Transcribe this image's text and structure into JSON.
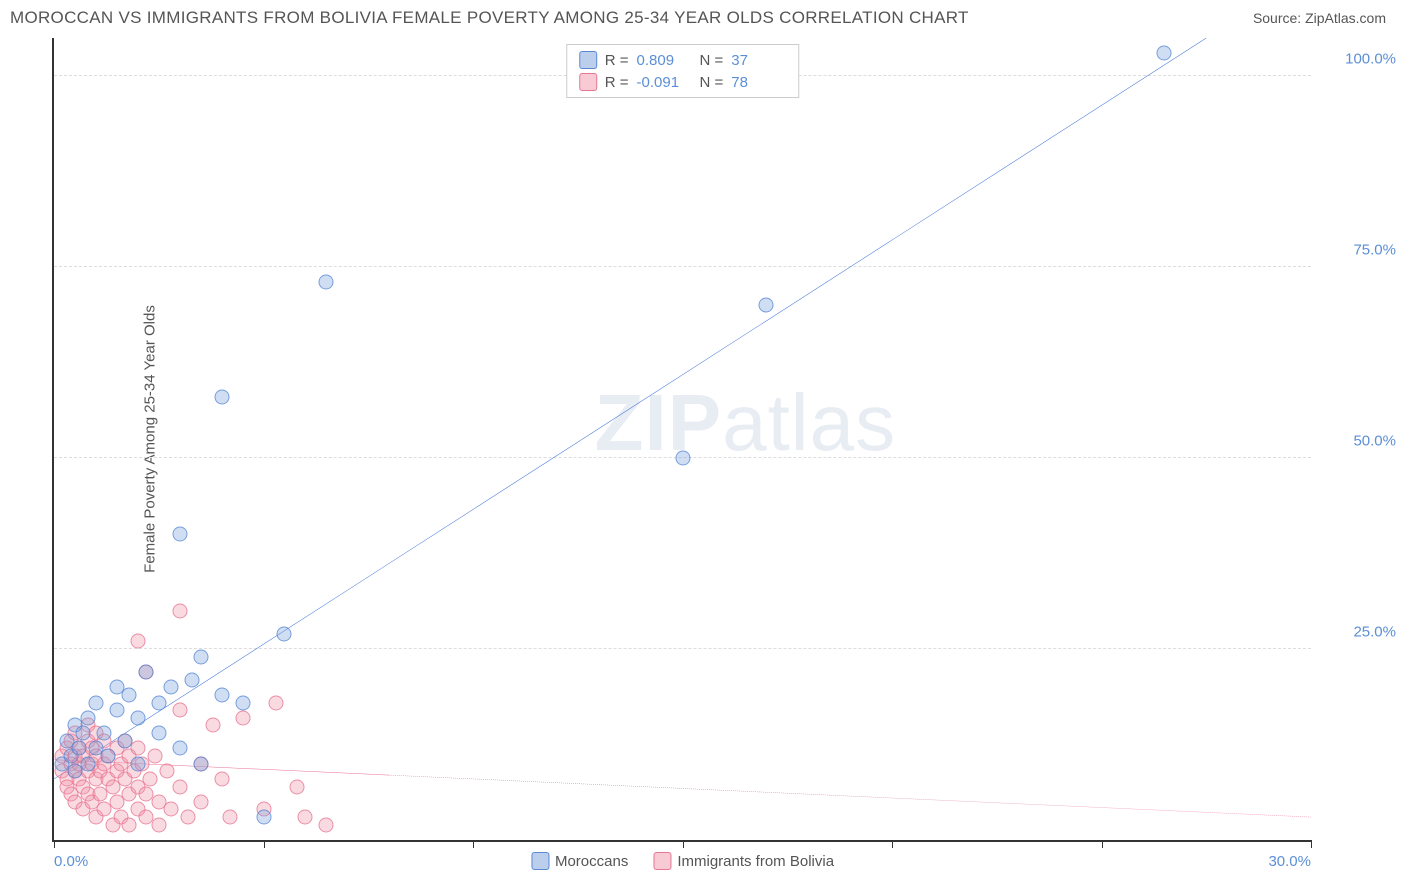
{
  "header": {
    "title": "MOROCCAN VS IMMIGRANTS FROM BOLIVIA FEMALE POVERTY AMONG 25-34 YEAR OLDS CORRELATION CHART",
    "source": "Source: ZipAtlas.com"
  },
  "watermark": {
    "part1": "ZIP",
    "part2": "atlas"
  },
  "chart": {
    "type": "scatter",
    "ylabel": "Female Poverty Among 25-34 Year Olds",
    "xlim": [
      0,
      30
    ],
    "ylim": [
      0,
      105
    ],
    "xticks": [
      0,
      5,
      10,
      15,
      20,
      25,
      30
    ],
    "xtick_labels": {
      "0": "0.0%",
      "30": "30.0%"
    },
    "yticks": [
      25,
      50,
      75,
      100
    ],
    "ytick_labels": {
      "25": "25.0%",
      "50": "50.0%",
      "75": "75.0%",
      "100": "100.0%"
    },
    "background_color": "#ffffff",
    "grid_color": "#dddddd",
    "axis_color": "#333333",
    "series": {
      "moroccans": {
        "label": "Moroccans",
        "color_fill": "rgba(120,160,220,0.35)",
        "color_stroke": "rgba(80,130,210,0.7)",
        "marker_size": 15,
        "R": "0.809",
        "N": "37",
        "trend": {
          "x1": 0,
          "y1": 8,
          "x2": 27.5,
          "y2": 105,
          "color": "#3a6fd8",
          "width": 2,
          "dash_after_x": 27.5
        },
        "points": [
          [
            0.2,
            10
          ],
          [
            0.3,
            13
          ],
          [
            0.4,
            11
          ],
          [
            0.5,
            15
          ],
          [
            0.5,
            9
          ],
          [
            0.6,
            12
          ],
          [
            0.7,
            14
          ],
          [
            0.8,
            10
          ],
          [
            0.8,
            16
          ],
          [
            1.0,
            12
          ],
          [
            1.0,
            18
          ],
          [
            1.2,
            14
          ],
          [
            1.3,
            11
          ],
          [
            1.5,
            17
          ],
          [
            1.5,
            20
          ],
          [
            1.7,
            13
          ],
          [
            1.8,
            19
          ],
          [
            2.0,
            16
          ],
          [
            2.0,
            10
          ],
          [
            2.2,
            22
          ],
          [
            2.5,
            18
          ],
          [
            2.5,
            14
          ],
          [
            2.8,
            20
          ],
          [
            3.0,
            12
          ],
          [
            3.3,
            21
          ],
          [
            3.5,
            10
          ],
          [
            3.5,
            24
          ],
          [
            4.0,
            19
          ],
          [
            4.5,
            18
          ],
          [
            5.0,
            3
          ],
          [
            5.5,
            27
          ],
          [
            3.0,
            40
          ],
          [
            4.0,
            58
          ],
          [
            6.5,
            73
          ],
          [
            17.0,
            70
          ],
          [
            15.0,
            50
          ],
          [
            26.5,
            103
          ]
        ]
      },
      "bolivia": {
        "label": "Immigrants from Bolivia",
        "color_fill": "rgba(240,150,170,0.35)",
        "color_stroke": "rgba(230,110,140,0.7)",
        "marker_size": 15,
        "R": "-0.091",
        "N": "78",
        "trend": {
          "x1": 0,
          "y1": 10.5,
          "x2": 30,
          "y2": 3,
          "color": "#e86f92",
          "width": 2,
          "dash_after_x": 8
        },
        "points": [
          [
            0.2,
            9
          ],
          [
            0.2,
            11
          ],
          [
            0.3,
            8
          ],
          [
            0.3,
            12
          ],
          [
            0.3,
            7
          ],
          [
            0.4,
            10
          ],
          [
            0.4,
            13
          ],
          [
            0.4,
            6
          ],
          [
            0.5,
            9
          ],
          [
            0.5,
            11
          ],
          [
            0.5,
            5
          ],
          [
            0.5,
            14
          ],
          [
            0.6,
            10
          ],
          [
            0.6,
            8
          ],
          [
            0.6,
            12
          ],
          [
            0.7,
            7
          ],
          [
            0.7,
            11
          ],
          [
            0.7,
            4
          ],
          [
            0.8,
            9
          ],
          [
            0.8,
            13
          ],
          [
            0.8,
            6
          ],
          [
            0.8,
            15
          ],
          [
            0.9,
            10
          ],
          [
            0.9,
            5
          ],
          [
            0.9,
            12
          ],
          [
            1.0,
            8
          ],
          [
            1.0,
            11
          ],
          [
            1.0,
            3
          ],
          [
            1.0,
            14
          ],
          [
            1.1,
            9
          ],
          [
            1.1,
            6
          ],
          [
            1.2,
            10
          ],
          [
            1.2,
            13
          ],
          [
            1.2,
            4
          ],
          [
            1.3,
            8
          ],
          [
            1.3,
            11
          ],
          [
            1.4,
            7
          ],
          [
            1.4,
            2
          ],
          [
            1.5,
            9
          ],
          [
            1.5,
            12
          ],
          [
            1.5,
            5
          ],
          [
            1.6,
            10
          ],
          [
            1.6,
            3
          ],
          [
            1.7,
            8
          ],
          [
            1.7,
            13
          ],
          [
            1.8,
            6
          ],
          [
            1.8,
            11
          ],
          [
            1.8,
            2
          ],
          [
            1.9,
            9
          ],
          [
            2.0,
            7
          ],
          [
            2.0,
            4
          ],
          [
            2.0,
            12
          ],
          [
            2.1,
            10
          ],
          [
            2.2,
            6
          ],
          [
            2.2,
            3
          ],
          [
            2.3,
            8
          ],
          [
            2.4,
            11
          ],
          [
            2.5,
            5
          ],
          [
            2.5,
            2
          ],
          [
            2.7,
            9
          ],
          [
            2.8,
            4
          ],
          [
            3.0,
            7
          ],
          [
            3.0,
            17
          ],
          [
            3.2,
            3
          ],
          [
            3.5,
            10
          ],
          [
            3.5,
            5
          ],
          [
            3.8,
            15
          ],
          [
            4.0,
            8
          ],
          [
            4.2,
            3
          ],
          [
            4.5,
            16
          ],
          [
            5.0,
            4
          ],
          [
            5.3,
            18
          ],
          [
            5.8,
            7
          ],
          [
            6.0,
            3
          ],
          [
            6.5,
            2
          ],
          [
            2.2,
            22
          ],
          [
            2.0,
            26
          ],
          [
            3.0,
            30
          ]
        ]
      }
    },
    "legend_top": {
      "R_label": "R =",
      "N_label": "N ="
    },
    "legend_bottom": [
      {
        "swatch": "blue",
        "label": "Moroccans"
      },
      {
        "swatch": "pink",
        "label": "Immigrants from Bolivia"
      }
    ]
  }
}
